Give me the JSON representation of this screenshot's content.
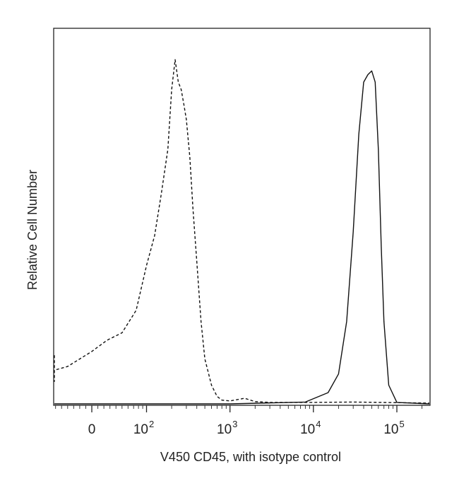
{
  "chart_data": {
    "type": "line",
    "title": "",
    "xlabel": "V450 CD45, with isotype control",
    "ylabel": "Relative Cell Number",
    "x_scale": "biexponential",
    "xlim": [
      -150,
      250000
    ],
    "ylim": [
      0,
      1
    ],
    "grid": false,
    "x_ticks": [
      {
        "value": 0,
        "base": "0",
        "exp": ""
      },
      {
        "value": 100,
        "base": "10",
        "exp": "2"
      },
      {
        "value": 1000,
        "base": "10",
        "exp": "3"
      },
      {
        "value": 10000,
        "base": "10",
        "exp": "4"
      },
      {
        "value": 100000,
        "base": "10",
        "exp": "5"
      }
    ],
    "series": [
      {
        "style": "dashed",
        "x": [
          -150,
          -120,
          -80,
          -40,
          0,
          25,
          50,
          75,
          100,
          125,
          150,
          180,
          200,
          220,
          240,
          260,
          280,
          300,
          330,
          360,
          400,
          450,
          500,
          600,
          700,
          800,
          1000,
          1500,
          2000,
          3000,
          5000,
          10000,
          30000,
          60000,
          120000,
          250000
        ],
        "y": [
          0.13,
          0.06,
          0.09,
          0.1,
          0.14,
          0.17,
          0.19,
          0.25,
          0.37,
          0.45,
          0.56,
          0.68,
          0.84,
          0.92,
          0.86,
          0.84,
          0.8,
          0.76,
          0.66,
          0.52,
          0.38,
          0.22,
          0.12,
          0.05,
          0.02,
          0.01,
          0.008,
          0.015,
          0.006,
          0.004,
          0.004,
          0.004,
          0.005,
          0.004,
          0.003,
          0.002
        ]
      },
      {
        "style": "solid",
        "x": [
          -150,
          1000,
          8000,
          15000,
          20000,
          25000,
          30000,
          35000,
          40000,
          45000,
          50000,
          55000,
          60000,
          65000,
          70000,
          80000,
          100000,
          250000
        ],
        "y": [
          0,
          0,
          0.005,
          0.03,
          0.08,
          0.22,
          0.46,
          0.72,
          0.86,
          0.88,
          0.89,
          0.86,
          0.68,
          0.42,
          0.22,
          0.05,
          0.004,
          0
        ]
      }
    ]
  }
}
